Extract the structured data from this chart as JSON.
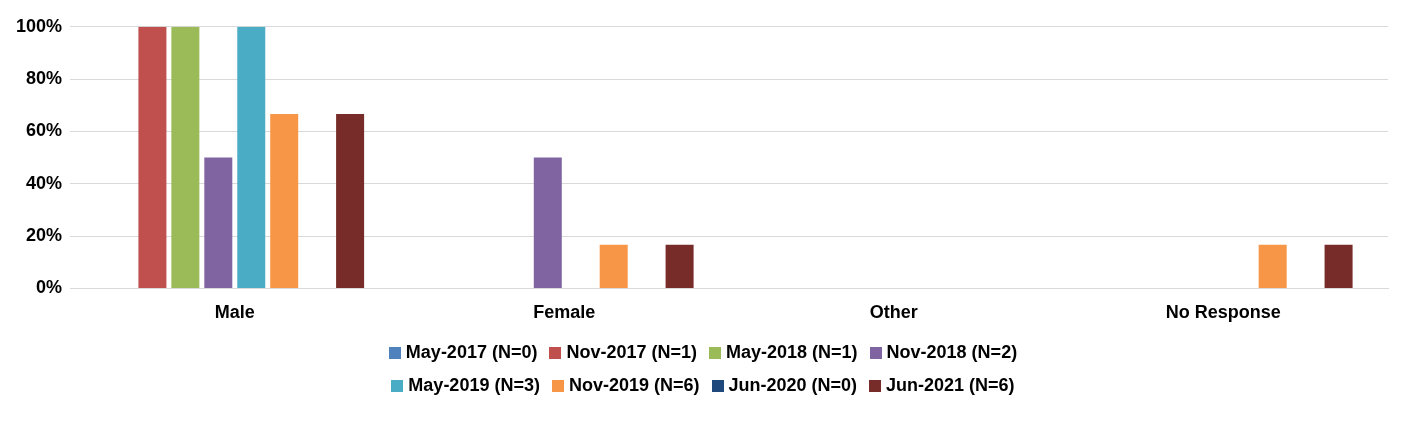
{
  "chart_data": {
    "type": "bar",
    "categories": [
      "Male",
      "Female",
      "Other",
      "No Response"
    ],
    "series": [
      {
        "name": "May-2017 (N=0)",
        "color": "#4f81bd",
        "values": [
          0,
          0,
          0,
          0
        ]
      },
      {
        "name": "Nov-2017 (N=1)",
        "color": "#c0504d",
        "values": [
          100,
          0,
          0,
          0
        ]
      },
      {
        "name": "May-2018 (N=1)",
        "color": "#9bbb59",
        "values": [
          100,
          0,
          0,
          0
        ]
      },
      {
        "name": "Nov-2018 (N=2)",
        "color": "#8064a2",
        "values": [
          50,
          50,
          0,
          0
        ]
      },
      {
        "name": "May-2019 (N=3)",
        "color": "#4bacc6",
        "values": [
          100,
          0,
          0,
          0
        ]
      },
      {
        "name": "Nov-2019 (N=6)",
        "color": "#f79646",
        "values": [
          66.7,
          16.7,
          0,
          16.7
        ]
      },
      {
        "name": "Jun-2020 (N=0)",
        "color": "#1f497d",
        "values": [
          0,
          0,
          0,
          0
        ]
      },
      {
        "name": "Jun-2021 (N=6)",
        "color": "#772c2a",
        "values": [
          66.7,
          16.7,
          0,
          16.7
        ]
      }
    ],
    "ylim": [
      0,
      100
    ],
    "yticks": [
      {
        "value": 0,
        "label": "0%"
      },
      {
        "value": 20,
        "label": "20%"
      },
      {
        "value": 40,
        "label": "40%"
      },
      {
        "value": 60,
        "label": "60%"
      },
      {
        "value": 80,
        "label": "80%"
      },
      {
        "value": 100,
        "label": "100%"
      }
    ],
    "grid": "y",
    "legend": "bottom"
  }
}
